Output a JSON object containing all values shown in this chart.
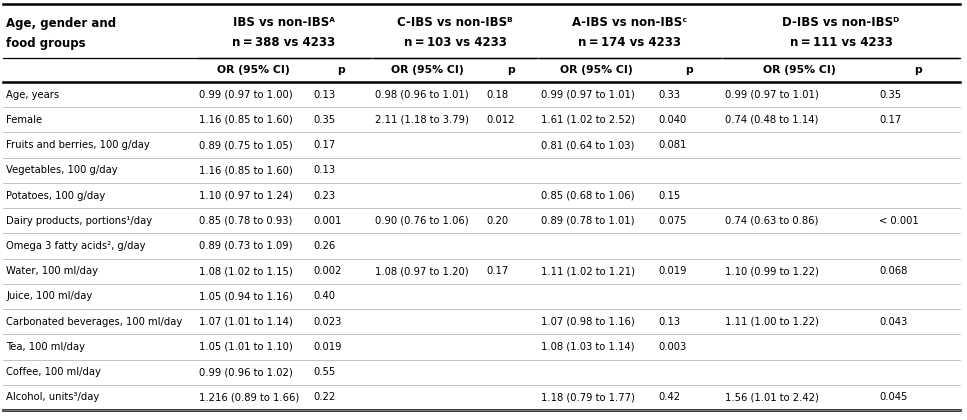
{
  "rows": [
    [
      "Age, years",
      "0.99 (0.97 to 1.00)",
      "0.13",
      "0.98 (0.96 to 1.01)",
      "0.18",
      "0.99 (0.97 to 1.01)",
      "0.33",
      "0.99 (0.97 to 1.01)",
      "0.35"
    ],
    [
      "Female",
      "1.16 (0.85 to 1.60)",
      "0.35",
      "2.11 (1.18 to 3.79)",
      "0.012",
      "1.61 (1.02 to 2.52)",
      "0.040",
      "0.74 (0.48 to 1.14)",
      "0.17"
    ],
    [
      "Fruits and berries, 100 g/day",
      "0.89 (0.75 to 1.05)",
      "0.17",
      "",
      "",
      "0.81 (0.64 to 1.03)",
      "0.081",
      "",
      ""
    ],
    [
      "Vegetables, 100 g/day",
      "1.16 (0.85 to 1.60)",
      "0.13",
      "",
      "",
      "",
      "",
      "",
      ""
    ],
    [
      "Potatoes, 100 g/day",
      "1.10 (0.97 to 1.24)",
      "0.23",
      "",
      "",
      "0.85 (0.68 to 1.06)",
      "0.15",
      "",
      ""
    ],
    [
      "Dairy products, portions¹/day",
      "0.85 (0.78 to 0.93)",
      "0.001",
      "0.90 (0.76 to 1.06)",
      "0.20",
      "0.89 (0.78 to 1.01)",
      "0.075",
      "0.74 (0.63 to 0.86)",
      "< 0.001"
    ],
    [
      "Omega 3 fatty acids², g/day",
      "0.89 (0.73 to 1.09)",
      "0.26",
      "",
      "",
      "",
      "",
      "",
      ""
    ],
    [
      "Water, 100 ml/day",
      "1.08 (1.02 to 1.15)",
      "0.002",
      "1.08 (0.97 to 1.20)",
      "0.17",
      "1.11 (1.02 to 1.21)",
      "0.019",
      "1.10 (0.99 to 1.22)",
      "0.068"
    ],
    [
      "Juice, 100 ml/day",
      "1.05 (0.94 to 1.16)",
      "0.40",
      "",
      "",
      "",
      "",
      "",
      ""
    ],
    [
      "Carbonated beverages, 100 ml/day",
      "1.07 (1.01 to 1.14)",
      "0.023",
      "",
      "",
      "1.07 (0.98 to 1.16)",
      "0.13",
      "1.11 (1.00 to 1.22)",
      "0.043"
    ],
    [
      "Tea, 100 ml/day",
      "1.05 (1.01 to 1.10)",
      "0.019",
      "",
      "",
      "1.08 (1.03 to 1.14)",
      "0.003",
      "",
      ""
    ],
    [
      "Coffee, 100 ml/day",
      "0.99 (0.96 to 1.02)",
      "0.55",
      "",
      "",
      "",
      "",
      "",
      ""
    ],
    [
      "Alcohol, units³/day",
      "1.216 (0.89 to 1.66)",
      "0.22",
      "",
      "",
      "1.18 (0.79 to 1.77)",
      "0.42",
      "1.56 (1.01 to 2.42)",
      "0.045"
    ]
  ],
  "group_headers": [
    [
      "IBS vs non-IBSᴬ",
      "n = 388 vs 4233"
    ],
    [
      "C-IBS vs non-IBSᴮ",
      "n = 103 vs 4233"
    ],
    [
      "A-IBS vs non-IBSᶜ",
      "n = 174 vs 4233"
    ],
    [
      "D-IBS vs non-IBSᴰ",
      "n = 111 vs 4233"
    ]
  ],
  "bg_color": "#ffffff",
  "text_color": "#000000",
  "font_size": 7.2,
  "header_font_size": 8.5,
  "subheader_font_size": 7.8
}
